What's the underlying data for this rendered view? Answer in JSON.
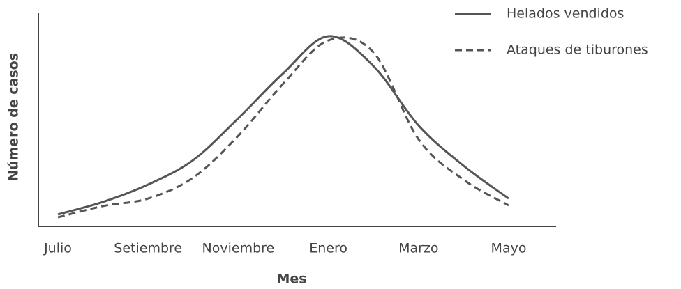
{
  "chart_data": {
    "type": "line",
    "xlabel": "Mes",
    "ylabel": "Número de casos",
    "categories": [
      "Julio",
      null,
      "Setiembre",
      null,
      "Noviembre",
      null,
      "Enero",
      null,
      "Marzo",
      null,
      "Mayo"
    ],
    "series": [
      {
        "name": "Helados vendidos",
        "color": "#555555",
        "linestyle": "solid",
        "values": [
          5.7,
          11.7,
          20,
          31.7,
          51.7,
          73.3,
          91,
          76.7,
          48.3,
          29,
          13.3
        ]
      },
      {
        "name": "Ataques de tiburones",
        "color": "#555555",
        "linestyle": "dashed",
        "values": [
          4.3,
          9.7,
          13.3,
          23.3,
          43.3,
          68.3,
          89,
          83.3,
          41.7,
          22.3,
          10
        ]
      }
    ],
    "ylim": [
      0,
      100
    ]
  }
}
